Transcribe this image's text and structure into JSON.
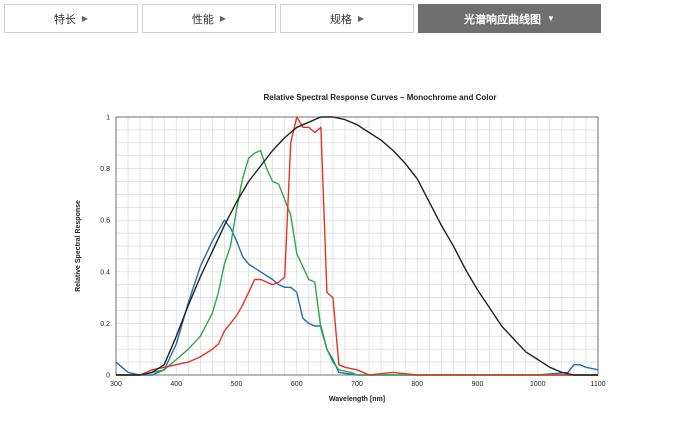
{
  "tabs": [
    {
      "label": "特长",
      "active": false
    },
    {
      "label": "性能",
      "active": false
    },
    {
      "label": "规格",
      "active": false
    },
    {
      "label": "光谱响应曲线图",
      "active": true
    }
  ],
  "chart_data": {
    "type": "line",
    "title": "Relative Spectral Response Curves – Monochrome and Color",
    "xlabel": "Wavelength [nm]",
    "ylabel": "Relative Spectral Response",
    "xlim": [
      300,
      1100
    ],
    "ylim": [
      0,
      1
    ],
    "xticks": [
      300,
      400,
      500,
      600,
      700,
      800,
      900,
      1000,
      1100
    ],
    "yticks": [
      0,
      0.2,
      0.4,
      0.6,
      0.8,
      1
    ],
    "ytick_labels": [
      "0",
      "0.2",
      "0.4",
      "0.6",
      "0.8",
      "1"
    ],
    "grid": true,
    "series": [
      {
        "color": "#1f6fb4",
        "points": [
          [
            300,
            0.05
          ],
          [
            310,
            0.03
          ],
          [
            320,
            0.01
          ],
          [
            340,
            0.0
          ],
          [
            360,
            0.0
          ],
          [
            380,
            0.02
          ],
          [
            400,
            0.12
          ],
          [
            420,
            0.28
          ],
          [
            440,
            0.42
          ],
          [
            460,
            0.52
          ],
          [
            470,
            0.56
          ],
          [
            480,
            0.6
          ],
          [
            490,
            0.57
          ],
          [
            500,
            0.52
          ],
          [
            510,
            0.46
          ],
          [
            520,
            0.43
          ],
          [
            540,
            0.4
          ],
          [
            560,
            0.37
          ],
          [
            570,
            0.35
          ],
          [
            580,
            0.34
          ],
          [
            590,
            0.34
          ],
          [
            600,
            0.32
          ],
          [
            610,
            0.22
          ],
          [
            620,
            0.2
          ],
          [
            630,
            0.19
          ],
          [
            640,
            0.19
          ],
          [
            650,
            0.1
          ],
          [
            660,
            0.06
          ],
          [
            670,
            0.01
          ],
          [
            700,
            0.0
          ],
          [
            800,
            0.0
          ],
          [
            900,
            0.0
          ],
          [
            1000,
            0.0
          ],
          [
            1050,
            0.01
          ],
          [
            1060,
            0.04
          ],
          [
            1070,
            0.04
          ],
          [
            1080,
            0.03
          ],
          [
            1100,
            0.02
          ]
        ]
      },
      {
        "color": "#2ca84a",
        "points": [
          [
            300,
            0.0
          ],
          [
            340,
            0.0
          ],
          [
            360,
            0.01
          ],
          [
            380,
            0.02
          ],
          [
            400,
            0.06
          ],
          [
            420,
            0.1
          ],
          [
            440,
            0.15
          ],
          [
            460,
            0.24
          ],
          [
            470,
            0.32
          ],
          [
            480,
            0.43
          ],
          [
            490,
            0.5
          ],
          [
            500,
            0.64
          ],
          [
            510,
            0.76
          ],
          [
            520,
            0.84
          ],
          [
            530,
            0.86
          ],
          [
            540,
            0.87
          ],
          [
            550,
            0.8
          ],
          [
            560,
            0.75
          ],
          [
            570,
            0.74
          ],
          [
            580,
            0.68
          ],
          [
            590,
            0.62
          ],
          [
            600,
            0.47
          ],
          [
            610,
            0.42
          ],
          [
            620,
            0.37
          ],
          [
            630,
            0.36
          ],
          [
            640,
            0.18
          ],
          [
            650,
            0.1
          ],
          [
            660,
            0.05
          ],
          [
            670,
            0.02
          ],
          [
            690,
            0.01
          ],
          [
            700,
            0.0
          ],
          [
            800,
            0.0
          ],
          [
            1100,
            0.0
          ]
        ]
      },
      {
        "color": "#e53228",
        "points": [
          [
            300,
            0.0
          ],
          [
            340,
            0.0
          ],
          [
            360,
            0.02
          ],
          [
            380,
            0.03
          ],
          [
            400,
            0.04
          ],
          [
            420,
            0.05
          ],
          [
            440,
            0.07
          ],
          [
            460,
            0.1
          ],
          [
            470,
            0.12
          ],
          [
            480,
            0.17
          ],
          [
            490,
            0.2
          ],
          [
            500,
            0.23
          ],
          [
            510,
            0.27
          ],
          [
            520,
            0.32
          ],
          [
            530,
            0.37
          ],
          [
            540,
            0.37
          ],
          [
            550,
            0.36
          ],
          [
            560,
            0.35
          ],
          [
            570,
            0.36
          ],
          [
            580,
            0.38
          ],
          [
            590,
            0.9
          ],
          [
            600,
            1.0
          ],
          [
            610,
            0.96
          ],
          [
            620,
            0.96
          ],
          [
            630,
            0.94
          ],
          [
            640,
            0.96
          ],
          [
            650,
            0.32
          ],
          [
            660,
            0.3
          ],
          [
            670,
            0.04
          ],
          [
            680,
            0.03
          ],
          [
            700,
            0.02
          ],
          [
            720,
            0.0
          ],
          [
            760,
            0.01
          ],
          [
            800,
            0.0
          ],
          [
            1100,
            0.0
          ]
        ]
      },
      {
        "color": "#222222",
        "points": [
          [
            300,
            0.0
          ],
          [
            340,
            0.0
          ],
          [
            360,
            0.01
          ],
          [
            380,
            0.04
          ],
          [
            400,
            0.15
          ],
          [
            420,
            0.27
          ],
          [
            440,
            0.38
          ],
          [
            460,
            0.48
          ],
          [
            480,
            0.58
          ],
          [
            500,
            0.67
          ],
          [
            520,
            0.75
          ],
          [
            540,
            0.81
          ],
          [
            560,
            0.87
          ],
          [
            580,
            0.92
          ],
          [
            600,
            0.96
          ],
          [
            620,
            0.98
          ],
          [
            640,
            1.0
          ],
          [
            660,
            1.0
          ],
          [
            680,
            0.99
          ],
          [
            700,
            0.97
          ],
          [
            720,
            0.94
          ],
          [
            740,
            0.91
          ],
          [
            760,
            0.87
          ],
          [
            780,
            0.82
          ],
          [
            800,
            0.76
          ],
          [
            820,
            0.67
          ],
          [
            840,
            0.58
          ],
          [
            860,
            0.5
          ],
          [
            880,
            0.41
          ],
          [
            900,
            0.33
          ],
          [
            920,
            0.26
          ],
          [
            940,
            0.19
          ],
          [
            960,
            0.14
          ],
          [
            980,
            0.09
          ],
          [
            1000,
            0.06
          ],
          [
            1020,
            0.03
          ],
          [
            1040,
            0.01
          ],
          [
            1060,
            0.0
          ],
          [
            1100,
            0.0
          ]
        ]
      }
    ]
  }
}
